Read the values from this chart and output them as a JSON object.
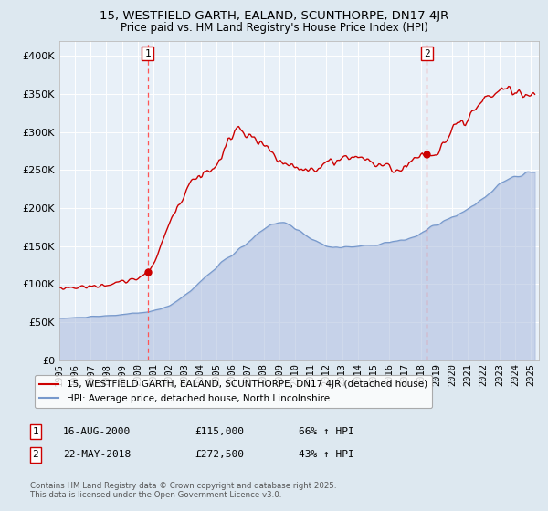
{
  "title1": "15, WESTFIELD GARTH, EALAND, SCUNTHORPE, DN17 4JR",
  "title2": "Price paid vs. HM Land Registry's House Price Index (HPI)",
  "sale1_date": "2000-08-16",
  "sale1_price": 115000,
  "sale1_label": "1",
  "sale2_date": "2018-05-22",
  "sale2_price": 272500,
  "sale2_label": "2",
  "legend1": "15, WESTFIELD GARTH, EALAND, SCUNTHORPE, DN17 4JR (detached house)",
  "legend2": "HPI: Average price, detached house, North Lincolnshire",
  "footnote": "Contains HM Land Registry data © Crown copyright and database right 2025.\nThis data is licensed under the Open Government Licence v3.0.",
  "hpi_color": "#7799cc",
  "hpi_fill_color": "#aabbdd",
  "property_color": "#cc0000",
  "bg_color": "#dde8f0",
  "plot_bg": "#e8f0f8",
  "grid_color": "#ffffff",
  "dashed_line_color": "#ff5555",
  "ylim_min": 0,
  "ylim_max": 420000,
  "yticks": [
    0,
    50000,
    100000,
    150000,
    200000,
    250000,
    300000,
    350000,
    400000
  ],
  "start_year": 1995,
  "end_year": 2025,
  "ann1_num": "1",
  "ann1_date": "16-AUG-2000",
  "ann1_price": "£115,000",
  "ann1_hpi": "66% ↑ HPI",
  "ann2_num": "2",
  "ann2_date": "22-MAY-2018",
  "ann2_price": "£272,500",
  "ann2_hpi": "43% ↑ HPI"
}
